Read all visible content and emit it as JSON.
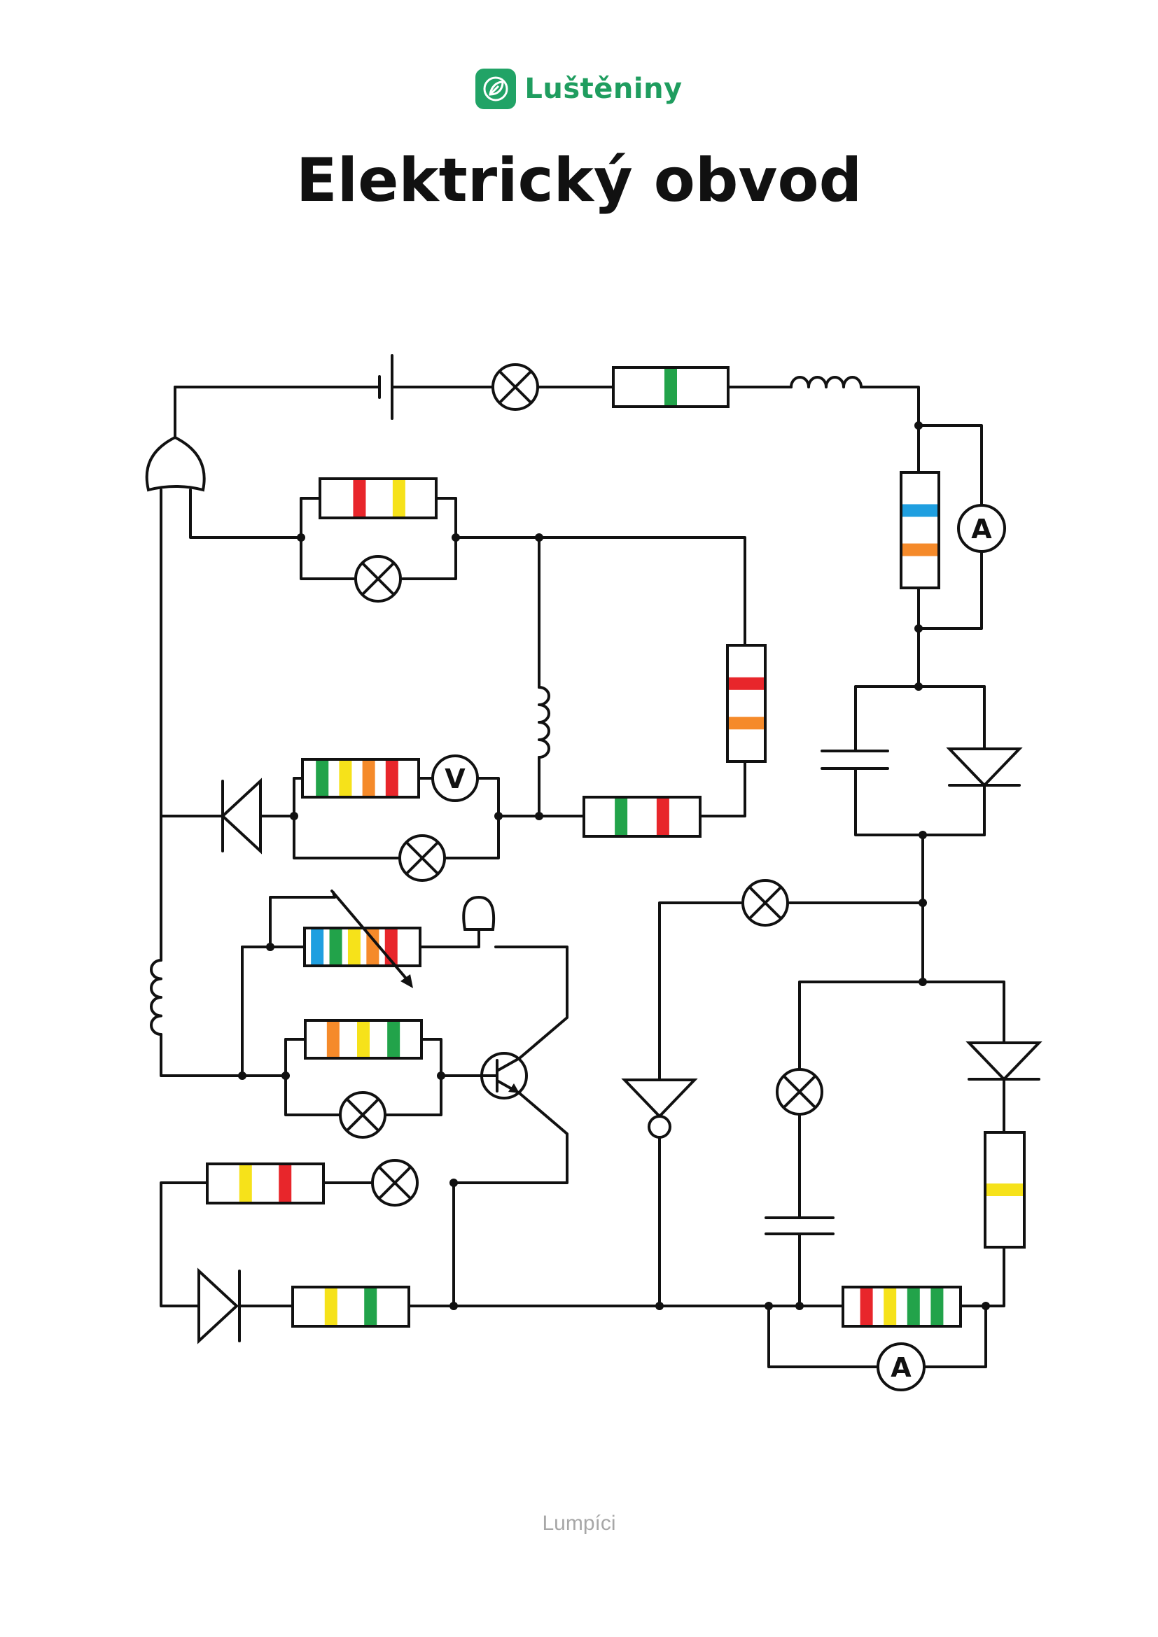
{
  "brand": {
    "name": "Luštěniny",
    "icon": "leaf-logo-icon",
    "color": "#21a366"
  },
  "title": "Elektrický obvod",
  "footer": "Lumpíci",
  "band_colors": {
    "red": "#e8262b",
    "yellow": "#f6e21a",
    "green": "#22a34a",
    "orange": "#f58a2a",
    "blue": "#1f9fe0"
  },
  "meters": {
    "ammeter": "A",
    "voltmeter": "V"
  },
  "resistors": [
    {
      "id": "r-top",
      "bands": [
        "green"
      ]
    },
    {
      "id": "r-red-yellow",
      "bands": [
        "red",
        "yellow"
      ]
    },
    {
      "id": "r-right-vertical",
      "bands": [
        "blue",
        "orange"
      ]
    },
    {
      "id": "r-mid-vertical",
      "bands": [
        "red",
        "orange"
      ]
    },
    {
      "id": "r-voltmeter",
      "bands": [
        "green",
        "yellow",
        "orange",
        "red"
      ]
    },
    {
      "id": "r-green-red",
      "bands": [
        "green",
        "red"
      ]
    },
    {
      "id": "r-variable",
      "bands": [
        "blue",
        "green",
        "yellow",
        "orange",
        "red"
      ]
    },
    {
      "id": "r-orange-yellow-green",
      "bands": [
        "orange",
        "yellow",
        "green"
      ]
    },
    {
      "id": "r-yellow-red",
      "bands": [
        "yellow",
        "red"
      ]
    },
    {
      "id": "r-yellow-green",
      "bands": [
        "yellow",
        "green"
      ]
    },
    {
      "id": "r-bottom-right-vertical",
      "bands": [
        "yellow"
      ]
    },
    {
      "id": "r-bottom",
      "bands": [
        "red",
        "yellow",
        "green",
        "green"
      ]
    }
  ]
}
